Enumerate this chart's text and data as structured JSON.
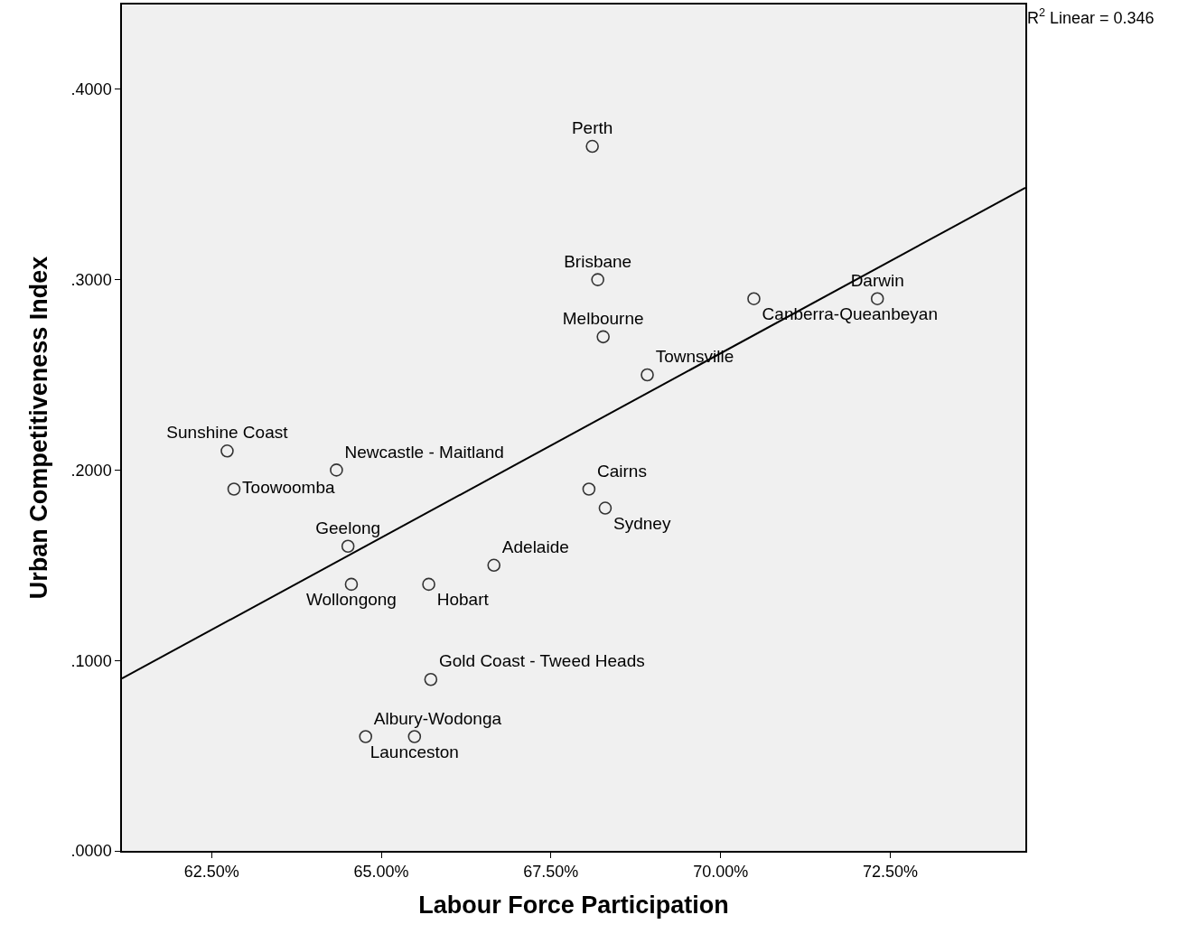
{
  "chart_data": {
    "type": "scatter",
    "xlabel": "Labour Force Participation",
    "ylabel": "Urban Competitiveness Index",
    "xlim": [
      61.18,
      74.49
    ],
    "ylim": [
      0,
      0.4445
    ],
    "xticks": [
      {
        "value": 62.5,
        "label": "62.50%"
      },
      {
        "value": 65,
        "label": "65.00%"
      },
      {
        "value": 67.5,
        "label": "67.50%"
      },
      {
        "value": 70,
        "label": "70.00%"
      },
      {
        "value": 72.5,
        "label": "72.50%"
      }
    ],
    "yticks": [
      {
        "value": 0,
        "label": ".0000"
      },
      {
        "value": 0.1,
        "label": ".1000"
      },
      {
        "value": 0.2,
        "label": ".2000"
      },
      {
        "value": 0.3,
        "label": ".3000"
      },
      {
        "value": 0.4,
        "label": ".4000"
      }
    ],
    "grid": false,
    "annotations": [
      "R$^{2}$ Linear = 0.346"
    ],
    "series": [
      {
        "marker": "circle",
        "color": "#333333",
        "x": [
          68.11,
          68.19,
          68.27,
          68.92,
          70.49,
          72.31,
          62.73,
          62.83,
          64.34,
          64.51,
          64.56,
          65.7,
          66.66,
          68.06,
          68.3,
          65.73,
          64.77,
          65.49
        ],
        "values": [
          0.37,
          0.3,
          0.27,
          0.25,
          0.29,
          0.29,
          0.21,
          0.19,
          0.2,
          0.16,
          0.14,
          0.14,
          0.15,
          0.19,
          0.18,
          0.09,
          0.06,
          0.06
        ],
        "value_labels": [
          "Perth",
          "Brisbane",
          "Melbourne",
          "Townsville",
          "Canberra-Queanbeyan",
          "Darwin",
          "Sunshine Coast",
          "Toowoomba",
          "Newcastle - Maitland",
          "Geelong",
          "Wollongong",
          "Hobart",
          "Adelaide",
          "Cairns",
          "Sydney",
          "Gold Coast - Tweed Heads",
          "Albury-Wodonga",
          "Launceston"
        ]
      },
      {
        "type": "line",
        "marker": "none",
        "color": "#000000",
        "x": [
          61.18,
          74.49
        ],
        "values": [
          0.0905,
          0.3483
        ]
      }
    ]
  }
}
